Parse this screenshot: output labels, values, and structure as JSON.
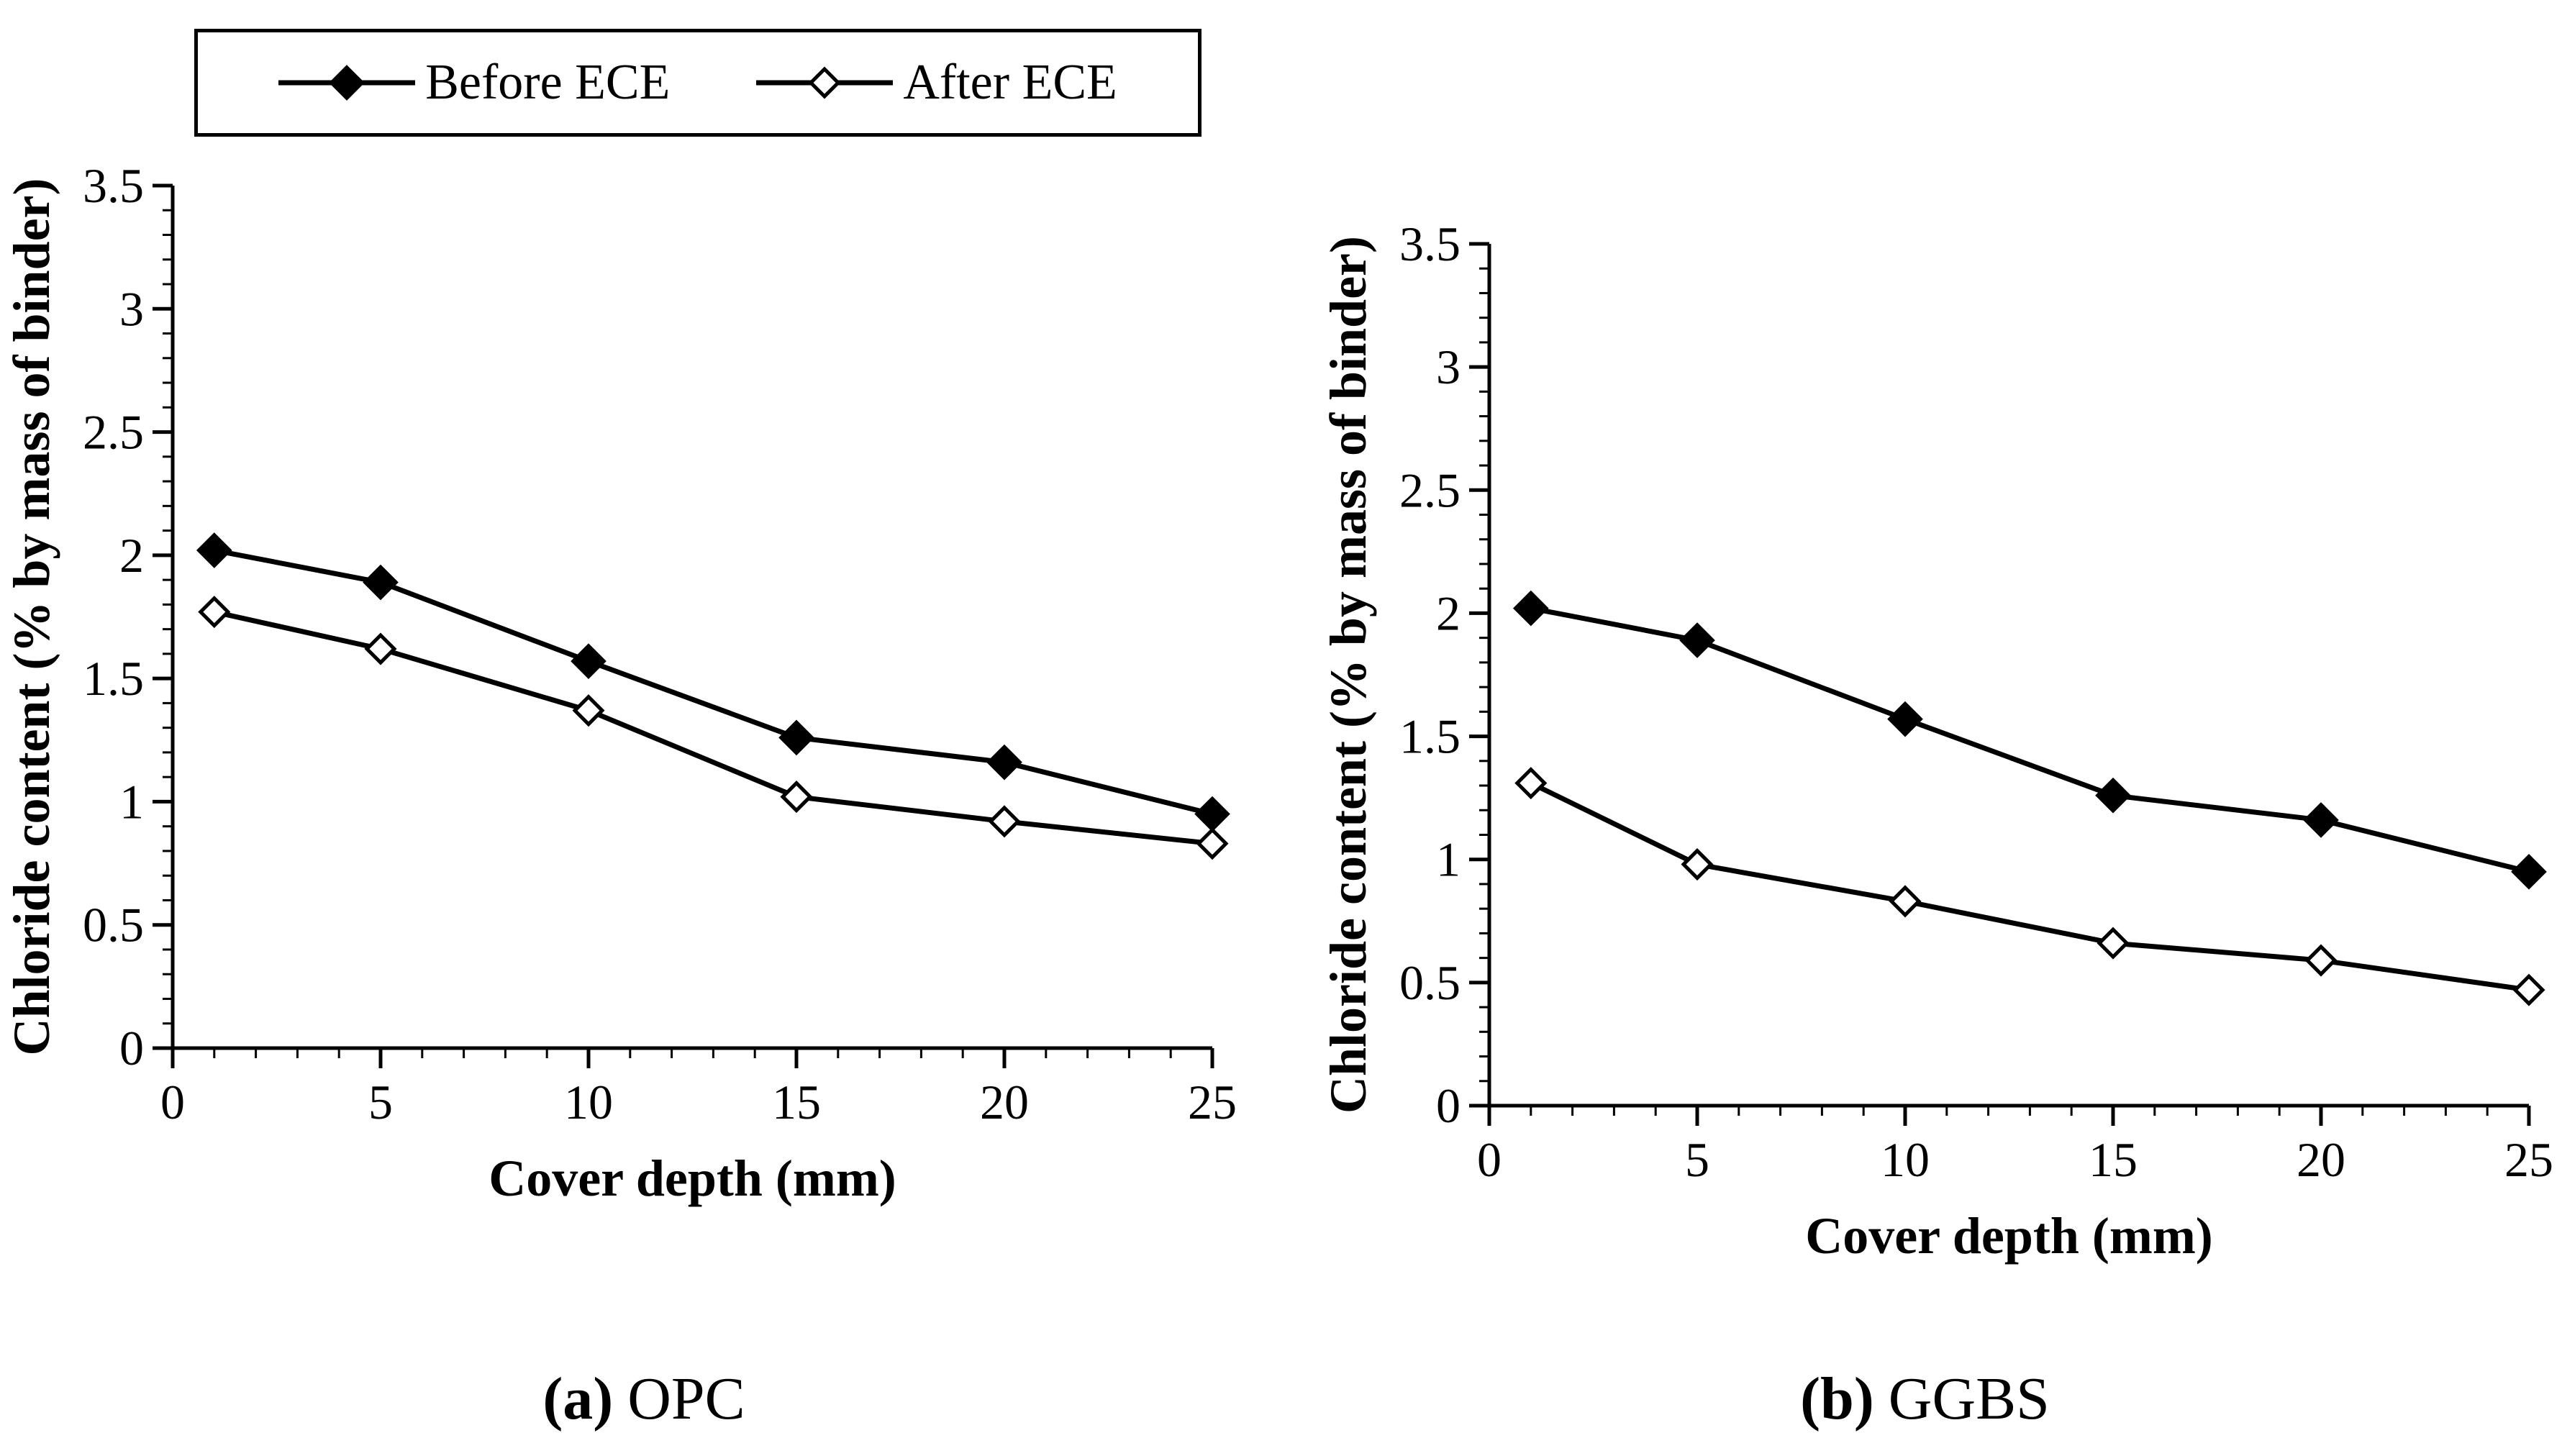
{
  "figure": {
    "background": "#ffffff",
    "line_color": "#000000",
    "legend": {
      "items": [
        {
          "label": "Before ECE",
          "marker": "filled-diamond"
        },
        {
          "label": "After ECE",
          "marker": "open-diamond"
        }
      ]
    }
  },
  "chart_data": [
    {
      "id": "a",
      "type": "line",
      "caption_label": "(a)",
      "caption_text": "OPC",
      "xlabel": "Cover depth (mm)",
      "ylabel": "Chloride content (% by mass of binder)",
      "xlim": [
        0,
        25
      ],
      "ylim": [
        0,
        3.5
      ],
      "x_major_ticks": [
        0,
        5,
        10,
        15,
        20,
        25
      ],
      "x_minor_step": 1,
      "y_major_ticks": [
        0,
        0.5,
        1,
        1.5,
        2,
        2.5,
        3,
        3.5
      ],
      "y_minor_step": 0.1,
      "grid": false,
      "legend_position": "top-left-outside",
      "x": [
        1,
        5,
        10,
        15,
        20,
        25
      ],
      "series": [
        {
          "name": "Before ECE",
          "marker": "filled-diamond",
          "color": "#000000",
          "values": [
            2.02,
            1.89,
            1.57,
            1.26,
            1.16,
            0.95
          ]
        },
        {
          "name": "After ECE",
          "marker": "open-diamond",
          "color": "#000000",
          "values": [
            1.77,
            1.62,
            1.37,
            1.02,
            0.92,
            0.83
          ]
        }
      ]
    },
    {
      "id": "b",
      "type": "line",
      "caption_label": "(b)",
      "caption_text": "GGBS",
      "xlabel": "Cover depth (mm)",
      "ylabel": "Chloride content (% by mass of binder)",
      "xlim": [
        0,
        25
      ],
      "ylim": [
        0,
        3.5
      ],
      "x_major_ticks": [
        0,
        5,
        10,
        15,
        20,
        25
      ],
      "x_minor_step": 1,
      "y_major_ticks": [
        0,
        0.5,
        1,
        1.5,
        2,
        2.5,
        3,
        3.5
      ],
      "y_minor_step": 0.1,
      "grid": false,
      "x": [
        1,
        5,
        10,
        15,
        20,
        25
      ],
      "series": [
        {
          "name": "Before ECE",
          "marker": "filled-diamond",
          "color": "#000000",
          "values": [
            2.02,
            1.89,
            1.57,
            1.26,
            1.16,
            0.95
          ]
        },
        {
          "name": "After ECE",
          "marker": "open-diamond",
          "color": "#000000",
          "values": [
            1.31,
            0.98,
            0.83,
            0.66,
            0.59,
            0.47
          ]
        }
      ]
    }
  ]
}
